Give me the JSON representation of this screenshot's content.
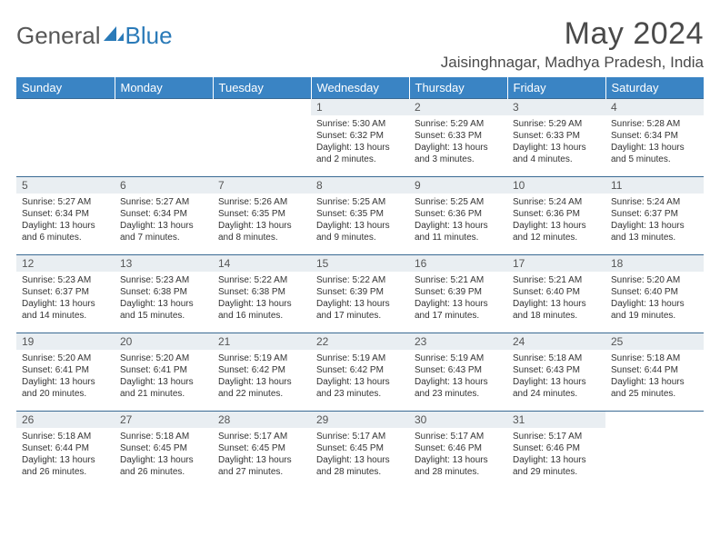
{
  "brand": {
    "part1": "General",
    "part2": "Blue"
  },
  "title": "May 2024",
  "subtitle": "Jaisinghnagar, Madhya Pradesh, India",
  "dayHeaders": [
    "Sunday",
    "Monday",
    "Tuesday",
    "Wednesday",
    "Thursday",
    "Friday",
    "Saturday"
  ],
  "colors": {
    "headerBg": "#3a84c4",
    "daynumBg": "#e9eef2",
    "rowBorder": "#3a6a94"
  },
  "weeks": [
    [
      null,
      null,
      null,
      {
        "n": "1",
        "sr": "5:30 AM",
        "ss": "6:32 PM",
        "dl": "13 hours and 2 minutes."
      },
      {
        "n": "2",
        "sr": "5:29 AM",
        "ss": "6:33 PM",
        "dl": "13 hours and 3 minutes."
      },
      {
        "n": "3",
        "sr": "5:29 AM",
        "ss": "6:33 PM",
        "dl": "13 hours and 4 minutes."
      },
      {
        "n": "4",
        "sr": "5:28 AM",
        "ss": "6:34 PM",
        "dl": "13 hours and 5 minutes."
      }
    ],
    [
      {
        "n": "5",
        "sr": "5:27 AM",
        "ss": "6:34 PM",
        "dl": "13 hours and 6 minutes."
      },
      {
        "n": "6",
        "sr": "5:27 AM",
        "ss": "6:34 PM",
        "dl": "13 hours and 7 minutes."
      },
      {
        "n": "7",
        "sr": "5:26 AM",
        "ss": "6:35 PM",
        "dl": "13 hours and 8 minutes."
      },
      {
        "n": "8",
        "sr": "5:25 AM",
        "ss": "6:35 PM",
        "dl": "13 hours and 9 minutes."
      },
      {
        "n": "9",
        "sr": "5:25 AM",
        "ss": "6:36 PM",
        "dl": "13 hours and 11 minutes."
      },
      {
        "n": "10",
        "sr": "5:24 AM",
        "ss": "6:36 PM",
        "dl": "13 hours and 12 minutes."
      },
      {
        "n": "11",
        "sr": "5:24 AM",
        "ss": "6:37 PM",
        "dl": "13 hours and 13 minutes."
      }
    ],
    [
      {
        "n": "12",
        "sr": "5:23 AM",
        "ss": "6:37 PM",
        "dl": "13 hours and 14 minutes."
      },
      {
        "n": "13",
        "sr": "5:23 AM",
        "ss": "6:38 PM",
        "dl": "13 hours and 15 minutes."
      },
      {
        "n": "14",
        "sr": "5:22 AM",
        "ss": "6:38 PM",
        "dl": "13 hours and 16 minutes."
      },
      {
        "n": "15",
        "sr": "5:22 AM",
        "ss": "6:39 PM",
        "dl": "13 hours and 17 minutes."
      },
      {
        "n": "16",
        "sr": "5:21 AM",
        "ss": "6:39 PM",
        "dl": "13 hours and 17 minutes."
      },
      {
        "n": "17",
        "sr": "5:21 AM",
        "ss": "6:40 PM",
        "dl": "13 hours and 18 minutes."
      },
      {
        "n": "18",
        "sr": "5:20 AM",
        "ss": "6:40 PM",
        "dl": "13 hours and 19 minutes."
      }
    ],
    [
      {
        "n": "19",
        "sr": "5:20 AM",
        "ss": "6:41 PM",
        "dl": "13 hours and 20 minutes."
      },
      {
        "n": "20",
        "sr": "5:20 AM",
        "ss": "6:41 PM",
        "dl": "13 hours and 21 minutes."
      },
      {
        "n": "21",
        "sr": "5:19 AM",
        "ss": "6:42 PM",
        "dl": "13 hours and 22 minutes."
      },
      {
        "n": "22",
        "sr": "5:19 AM",
        "ss": "6:42 PM",
        "dl": "13 hours and 23 minutes."
      },
      {
        "n": "23",
        "sr": "5:19 AM",
        "ss": "6:43 PM",
        "dl": "13 hours and 23 minutes."
      },
      {
        "n": "24",
        "sr": "5:18 AM",
        "ss": "6:43 PM",
        "dl": "13 hours and 24 minutes."
      },
      {
        "n": "25",
        "sr": "5:18 AM",
        "ss": "6:44 PM",
        "dl": "13 hours and 25 minutes."
      }
    ],
    [
      {
        "n": "26",
        "sr": "5:18 AM",
        "ss": "6:44 PM",
        "dl": "13 hours and 26 minutes."
      },
      {
        "n": "27",
        "sr": "5:18 AM",
        "ss": "6:45 PM",
        "dl": "13 hours and 26 minutes."
      },
      {
        "n": "28",
        "sr": "5:17 AM",
        "ss": "6:45 PM",
        "dl": "13 hours and 27 minutes."
      },
      {
        "n": "29",
        "sr": "5:17 AM",
        "ss": "6:45 PM",
        "dl": "13 hours and 28 minutes."
      },
      {
        "n": "30",
        "sr": "5:17 AM",
        "ss": "6:46 PM",
        "dl": "13 hours and 28 minutes."
      },
      {
        "n": "31",
        "sr": "5:17 AM",
        "ss": "6:46 PM",
        "dl": "13 hours and 29 minutes."
      },
      null
    ]
  ],
  "labels": {
    "sunrise": "Sunrise: ",
    "sunset": "Sunset: ",
    "daylight": "Daylight: "
  }
}
